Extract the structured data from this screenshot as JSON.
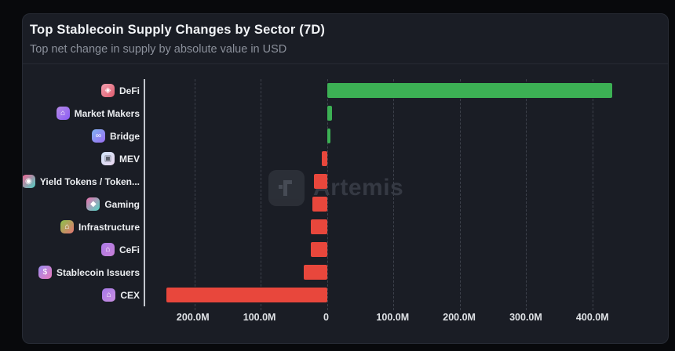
{
  "header": {
    "title": "Top Stablecoin Supply Changes by Sector (7D)",
    "subtitle": "Top net change in supply by absolute value in USD"
  },
  "watermark": {
    "brand": "Artemis"
  },
  "colors": {
    "positive": "#3cb054",
    "negative": "#e8473c",
    "card_bg": "#1a1d25",
    "page_bg": "#08090c",
    "axis_line": "#c2c6cd",
    "gridline": "#3d414b"
  },
  "chart_data": {
    "type": "bar",
    "orientation": "horizontal",
    "title": "Top Stablecoin Supply Changes by Sector (7D)",
    "subtitle": "Top net change in supply by absolute value in USD",
    "unit": "USD (millions)",
    "grid": "dashed-vertical",
    "xlim": [
      -274,
      504
    ],
    "categories": [
      "DeFi",
      "Market Makers",
      "Bridge",
      "MEV",
      "Yield Tokens / Token...",
      "Gaming",
      "Infrastructure",
      "CeFi",
      "Stablecoin Issuers",
      "CEX"
    ],
    "values": [
      430,
      7,
      5,
      -8,
      -20,
      -22,
      -24,
      -25,
      -35,
      -242
    ],
    "ticks": [
      {
        "value": -200,
        "label": "200.0M"
      },
      {
        "value": -100,
        "label": "100.0M"
      },
      {
        "value": 0,
        "label": "0"
      },
      {
        "value": 100,
        "label": "100.0M"
      },
      {
        "value": 200,
        "label": "200.0M"
      },
      {
        "value": 300,
        "label": "300.0M"
      },
      {
        "value": 400,
        "label": "400.0M"
      }
    ],
    "icons": [
      {
        "name": "defi-icon",
        "glyph": "◈",
        "from": "#f2a0b0",
        "to": "#e05c6e",
        "fg": "#ffffff"
      },
      {
        "name": "market-makers-icon",
        "glyph": "⌂",
        "from": "#b58ae6",
        "to": "#8b5cf6",
        "fg": "#ffffff"
      },
      {
        "name": "bridge-icon",
        "glyph": "∞",
        "from": "#7fb3f0",
        "to": "#9b6ef3",
        "fg": "#ffffff"
      },
      {
        "name": "mev-icon",
        "glyph": "▣",
        "from": "#cfe3f7",
        "to": "#e9d6ef",
        "fg": "#5a5f6b"
      },
      {
        "name": "yield-tokens-icon",
        "glyph": "◉",
        "from": "#f06292",
        "to": "#4dd0c4",
        "fg": "#ffffff"
      },
      {
        "name": "gaming-icon",
        "glyph": "◆",
        "from": "#ec6fae",
        "to": "#4fd8c4",
        "fg": "#ffffff"
      },
      {
        "name": "infrastructure-icon",
        "glyph": "⌂",
        "from": "#8bc34a",
        "to": "#e57373",
        "fg": "#ffffff"
      },
      {
        "name": "cefi-icon",
        "glyph": "⌂",
        "from": "#ab7be8",
        "to": "#c77fd6",
        "fg": "#ffffff"
      },
      {
        "name": "stablecoin-issuers-icon",
        "glyph": "$",
        "from": "#9b8cf0",
        "to": "#e879b9",
        "fg": "#ffffff"
      },
      {
        "name": "cex-icon",
        "glyph": "⌂",
        "from": "#a678e8",
        "to": "#c98fe0",
        "fg": "#ffffff"
      }
    ]
  }
}
